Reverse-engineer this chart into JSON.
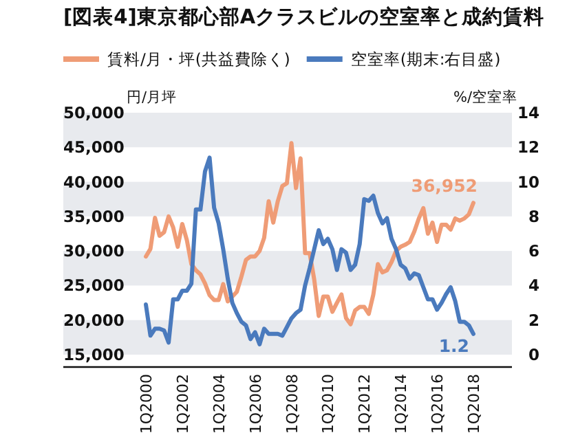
{
  "chart_data": {
    "type": "line",
    "title": "[図表4]東京都心部Aクラスビルの空室率と成約賃料",
    "categories": [
      "1Q2000",
      null,
      null,
      null,
      null,
      null,
      null,
      null,
      "1Q2002",
      null,
      null,
      null,
      null,
      null,
      null,
      null,
      "1Q2004",
      null,
      null,
      null,
      null,
      null,
      null,
      null,
      "1Q2006",
      null,
      null,
      null,
      null,
      null,
      null,
      null,
      "1Q2008",
      null,
      null,
      null,
      null,
      null,
      null,
      null,
      "1Q2010",
      null,
      null,
      null,
      null,
      null,
      null,
      null,
      "1Q2012",
      null,
      null,
      null,
      null,
      null,
      null,
      null,
      "1Q2014",
      null,
      null,
      null,
      null,
      null,
      null,
      null,
      "1Q2016",
      null,
      null,
      null,
      null,
      null,
      null,
      null,
      "1Q2018"
    ],
    "series": [
      {
        "name": "賃料/月・坪(共益費除く)",
        "color": "#ef9c76",
        "values": [
          29200,
          30300,
          34800,
          32200,
          32700,
          35000,
          33400,
          30600,
          33900,
          31600,
          28100,
          27200,
          26600,
          25300,
          23600,
          22900,
          22900,
          25200,
          22700,
          23400,
          24100,
          26300,
          28700,
          29200,
          29200,
          30000,
          31900,
          37200,
          34100,
          37200,
          39400,
          39800,
          45600,
          39100,
          43400,
          29700,
          29700,
          25900,
          20600,
          23400,
          23400,
          21200,
          22500,
          23700,
          20300,
          19400,
          21400,
          21900,
          21900,
          20900,
          23700,
          28100,
          26900,
          27200,
          28400,
          30000,
          30600,
          30900,
          31300,
          32800,
          34700,
          36200,
          32500,
          34100,
          31300,
          33800,
          33800,
          33100,
          34700,
          34400,
          34700,
          35300,
          36952
        ],
        "value_labels": [
          null,
          null,
          null,
          null,
          null,
          null,
          null,
          null,
          null,
          null,
          null,
          null,
          null,
          null,
          null,
          null,
          null,
          null,
          null,
          null,
          null,
          null,
          null,
          null,
          null,
          null,
          null,
          null,
          null,
          null,
          null,
          null,
          null,
          null,
          null,
          null,
          null,
          null,
          null,
          null,
          null,
          null,
          null,
          null,
          null,
          null,
          null,
          null,
          null,
          null,
          null,
          null,
          null,
          null,
          null,
          null,
          null,
          null,
          null,
          null,
          null,
          null,
          null,
          null,
          null,
          null,
          null,
          null,
          null,
          null,
          null,
          null,
          "36,952"
        ]
      },
      {
        "name": "空室率(期末:右目盛)",
        "color": "#4a7abd",
        "axis": "y2",
        "values": [
          2.9,
          1.1,
          1.5,
          1.5,
          1.4,
          0.7,
          3.2,
          3.2,
          3.7,
          3.7,
          4.1,
          8.4,
          8.4,
          10.6,
          11.4,
          8.5,
          7.6,
          6.1,
          4.4,
          3.0,
          2.4,
          1.9,
          1.7,
          0.9,
          1.3,
          0.6,
          1.5,
          1.2,
          1.2,
          1.2,
          1.1,
          1.6,
          2.1,
          2.4,
          2.6,
          4.0,
          5.0,
          6.1,
          7.2,
          6.4,
          6.7,
          6.1,
          4.9,
          6.1,
          5.9,
          4.9,
          5.2,
          6.4,
          9.0,
          8.9,
          9.2,
          8.2,
          7.6,
          7.9,
          6.7,
          6.1,
          5.2,
          5.0,
          4.4,
          4.7,
          4.6,
          3.9,
          3.2,
          3.2,
          2.6,
          3.0,
          3.5,
          3.9,
          3.1,
          1.9,
          1.9,
          1.7,
          1.2
        ],
        "value_labels": [
          null,
          null,
          null,
          null,
          null,
          null,
          null,
          null,
          null,
          null,
          null,
          null,
          null,
          null,
          null,
          null,
          null,
          null,
          null,
          null,
          null,
          null,
          null,
          null,
          null,
          null,
          null,
          null,
          null,
          null,
          null,
          null,
          null,
          null,
          null,
          null,
          null,
          null,
          null,
          null,
          null,
          null,
          null,
          null,
          null,
          null,
          null,
          null,
          null,
          null,
          null,
          null,
          null,
          null,
          null,
          null,
          null,
          null,
          null,
          null,
          null,
          null,
          null,
          null,
          null,
          null,
          null,
          null,
          null,
          null,
          null,
          null,
          "1.2"
        ]
      }
    ],
    "ylabel": "円/月坪",
    "y2label": "%/空室率",
    "ylim": [
      15000,
      50000
    ],
    "yticks": [
      {
        "value": 15000,
        "label": "15,000"
      },
      {
        "value": 20000,
        "label": "20,000"
      },
      {
        "value": 25000,
        "label": "25,000"
      },
      {
        "value": 30000,
        "label": "30,000"
      },
      {
        "value": 35000,
        "label": "35,000"
      },
      {
        "value": 40000,
        "label": "40,000"
      },
      {
        "value": 45000,
        "label": "45,000"
      },
      {
        "value": 50000,
        "label": "50,000"
      }
    ],
    "y2lim": [
      0,
      14
    ],
    "y2ticks": [
      0,
      2,
      4,
      6,
      8,
      10,
      12,
      14
    ],
    "bands": [
      {
        "axis": "y",
        "from": 15000,
        "to": 20000,
        "color": "#e8eaee"
      },
      {
        "axis": "y",
        "from": 25000,
        "to": 30000,
        "color": "#e8eaee"
      },
      {
        "axis": "y",
        "from": 35000,
        "to": 40000,
        "color": "#e8eaee"
      },
      {
        "axis": "y",
        "from": 45000,
        "to": 50000,
        "color": "#e8eaee"
      }
    ],
    "legend": "top",
    "marker": "none",
    "line_style": "solid"
  }
}
